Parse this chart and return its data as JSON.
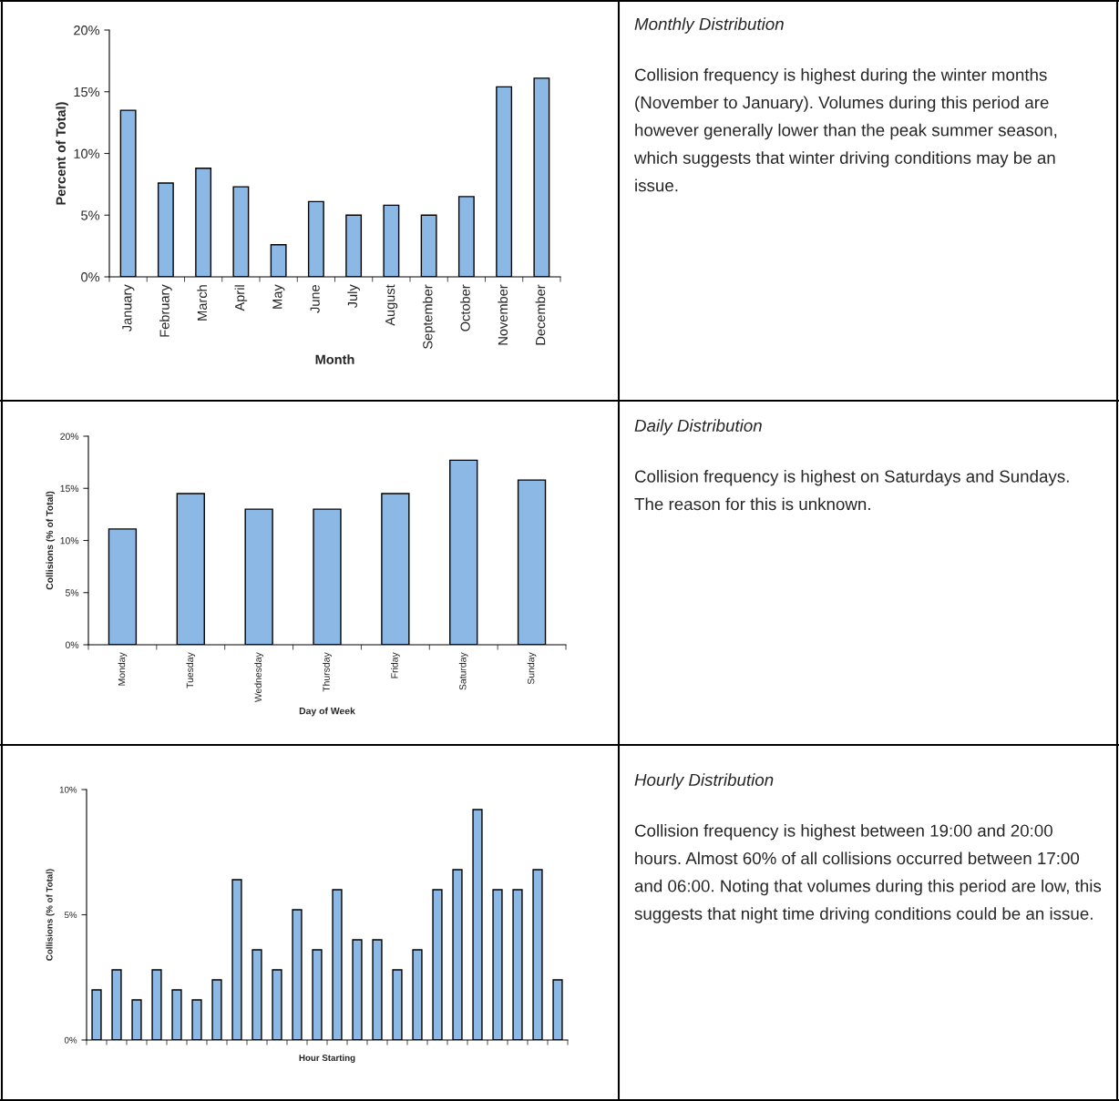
{
  "chart_data": [
    {
      "type": "bar",
      "xlabel": "Month",
      "ylabel": "Percent of Total)",
      "categories": [
        "January",
        "February",
        "March",
        "April",
        "May",
        "June",
        "July",
        "August",
        "September",
        "October",
        "November",
        "December"
      ],
      "values": [
        13.5,
        7.6,
        8.8,
        7.3,
        2.6,
        6.1,
        5.0,
        5.8,
        5.0,
        6.5,
        15.4,
        16.1
      ],
      "color": "#8cb8e6",
      "ylim": [
        0,
        20
      ],
      "yticks": [
        {
          "value": 0,
          "label": "0%"
        },
        {
          "value": 5,
          "label": "5%"
        },
        {
          "value": 10,
          "label": "10%"
        },
        {
          "value": 15,
          "label": "15%"
        },
        {
          "value": 20,
          "label": "20%"
        }
      ],
      "grid": false,
      "legend": false
    },
    {
      "type": "other",
      "title": "Monthly Distribution",
      "annotations": [
        "Collision frequency is highest during the winter months (November to January). Volumes during this period are however generally lower than the peak summer season, which suggests that winter driving conditions may be an issue."
      ]
    },
    {
      "type": "bar",
      "xlabel": "Day of Week",
      "ylabel": "Collisions (% of Total)",
      "categories": [
        "Monday",
        "Tuesday",
        "Wednesday",
        "Thursday",
        "Friday",
        "Saturday",
        "Sunday"
      ],
      "values": [
        11.1,
        14.5,
        13.0,
        13.0,
        14.5,
        17.7,
        15.8
      ],
      "color": "#8cb8e6",
      "ylim": [
        0,
        20
      ],
      "yticks": [
        {
          "value": 0,
          "label": "0%"
        },
        {
          "value": 5,
          "label": "5%"
        },
        {
          "value": 10,
          "label": "10%"
        },
        {
          "value": 15,
          "label": "15%"
        },
        {
          "value": 20,
          "label": "20%"
        }
      ],
      "grid": false,
      "legend": false
    },
    {
      "type": "other",
      "title": "Daily Distribution",
      "annotations": [
        "Collision frequency is highest on Saturdays and Sundays. The reason for this is unknown."
      ]
    },
    {
      "type": "bar",
      "xlabel": "Hour Starting",
      "ylabel": "Collisions (% of Total)",
      "categories": [
        null,
        null,
        null,
        null,
        null,
        null,
        null,
        null,
        null,
        null,
        null,
        null,
        null,
        null,
        null,
        null,
        null,
        null,
        null,
        null,
        null,
        null,
        null,
        null
      ],
      "values": [
        2.0,
        2.8,
        1.6,
        2.8,
        2.0,
        1.6,
        2.4,
        6.4,
        3.6,
        2.8,
        5.2,
        3.6,
        6.0,
        4.0,
        4.0,
        2.8,
        3.6,
        6.0,
        6.8,
        9.2,
        6.0,
        6.0,
        6.8,
        2.4
      ],
      "color": "#8cb8e6",
      "ylim": [
        0,
        10
      ],
      "yticks": [
        {
          "value": 0,
          "label": "0%"
        },
        {
          "value": 5,
          "label": "5%"
        },
        {
          "value": 10,
          "label": "10%"
        }
      ],
      "grid": false,
      "legend": false
    },
    {
      "type": "other",
      "title": "Hourly Distribution",
      "annotations": [
        "Collision frequency is highest between 19:00 and 20:00 hours. Almost 60% of all collisions occurred between 17:00 and 06:00. Noting that volumes during this period are low, this suggests that night time driving conditions could be an issue."
      ]
    }
  ]
}
